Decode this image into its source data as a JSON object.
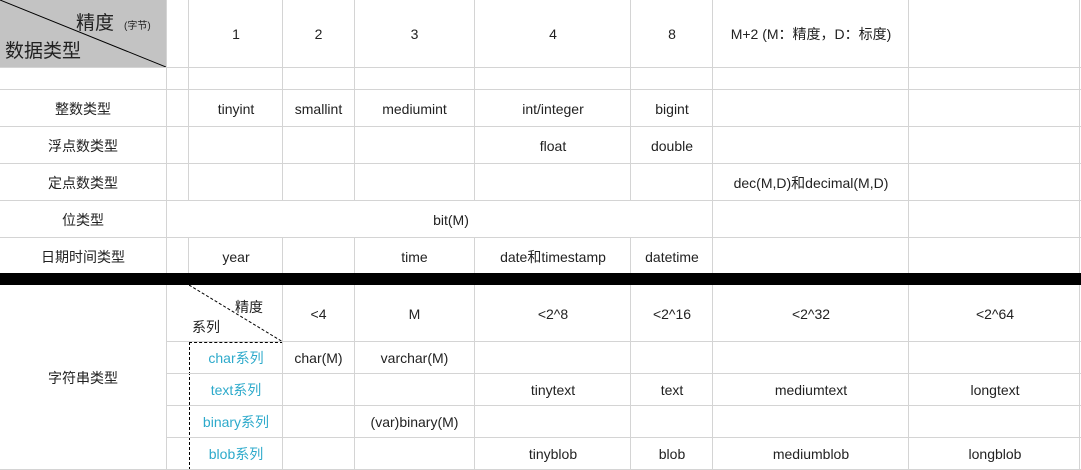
{
  "corner": {
    "precision_label": "精度",
    "precision_unit": "(字节)",
    "type_label": "数据类型"
  },
  "header_row": [
    "1",
    "2",
    "3",
    "4",
    "8",
    "M+2 (M：精度，D：标度)"
  ],
  "rows": [
    {
      "label": "整数类型",
      "cells": [
        "tinyint",
        "smallint",
        "mediumint",
        "int/integer",
        "bigint"
      ]
    },
    {
      "label": "浮点数类型",
      "cells": [
        "",
        "",
        "",
        "float",
        "double"
      ]
    },
    {
      "label": "定点数类型",
      "decimal": "dec(M,D)和decimal(M,D)"
    },
    {
      "label": "位类型",
      "bit": "bit(M)"
    },
    {
      "label": "日期时间类型",
      "cells": [
        "year",
        "",
        "time",
        "date和timestamp",
        "datetime"
      ]
    }
  ],
  "string_section": {
    "label": "字符串类型",
    "corner_precision": "精度",
    "corner_series": "系列",
    "header": [
      "<4",
      "M",
      "<2^8",
      "<2^16",
      "<2^32",
      "<2^64"
    ],
    "series": [
      {
        "name": "char系列",
        "cells": [
          "char(M)",
          "varchar(M)",
          "",
          "",
          "",
          ""
        ]
      },
      {
        "name": "text系列",
        "cells": [
          "",
          "",
          "tinytext",
          "text",
          "mediumtext",
          "longtext"
        ]
      },
      {
        "name": "binary系列",
        "cells": [
          "",
          "(var)binary(M)",
          "",
          "",
          "",
          ""
        ]
      },
      {
        "name": "blob系列",
        "cells": [
          "",
          "",
          "tinyblob",
          "blob",
          "mediumblob",
          "longblob"
        ]
      }
    ]
  },
  "colors": {
    "series_text": "#2eaacb",
    "header_bg": "#c3c3c3",
    "grid": "#d4d4d4",
    "divider": "#000000"
  }
}
